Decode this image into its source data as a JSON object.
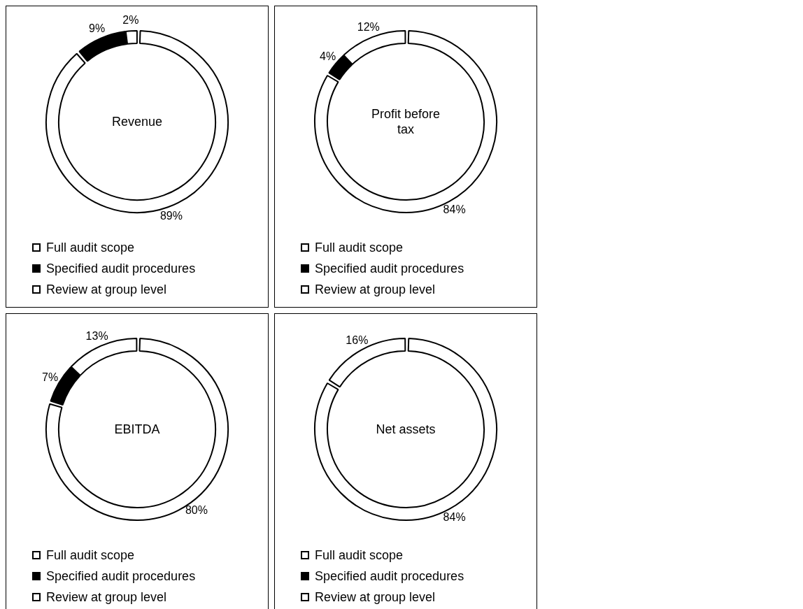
{
  "chart_data": [
    {
      "type": "donut",
      "title": "Revenue",
      "categories": [
        "Full audit scope",
        "Specified audit procedures",
        "Review at group level"
      ],
      "values": [
        89,
        9,
        2
      ],
      "colors": [
        "#ffffff",
        "#000000",
        "#ffffff"
      ],
      "value_labels": [
        "89%",
        "9%",
        "2%"
      ],
      "legend": "bottom"
    },
    {
      "type": "donut",
      "title": "Profit before tax",
      "categories": [
        "Full audit scope",
        "Specified audit procedures",
        "Review at group level"
      ],
      "values": [
        84,
        4,
        12
      ],
      "colors": [
        "#ffffff",
        "#000000",
        "#ffffff"
      ],
      "value_labels": [
        "84%",
        "4%",
        "12%"
      ],
      "legend": "bottom"
    },
    {
      "type": "donut",
      "title": "EBITDA",
      "categories": [
        "Full audit scope",
        "Specified audit procedures",
        "Review at group level"
      ],
      "values": [
        80,
        7,
        13
      ],
      "colors": [
        "#ffffff",
        "#000000",
        "#ffffff"
      ],
      "value_labels": [
        "80%",
        "7%",
        "13%"
      ],
      "legend": "bottom"
    },
    {
      "type": "donut",
      "title": "Net assets",
      "categories": [
        "Full audit scope",
        "Specified audit procedures",
        "Review at group level"
      ],
      "values": [
        84,
        0,
        16
      ],
      "colors": [
        "#ffffff",
        "#000000",
        "#ffffff"
      ],
      "value_labels": [
        "84%",
        null,
        "16%"
      ],
      "legend": "bottom"
    }
  ]
}
